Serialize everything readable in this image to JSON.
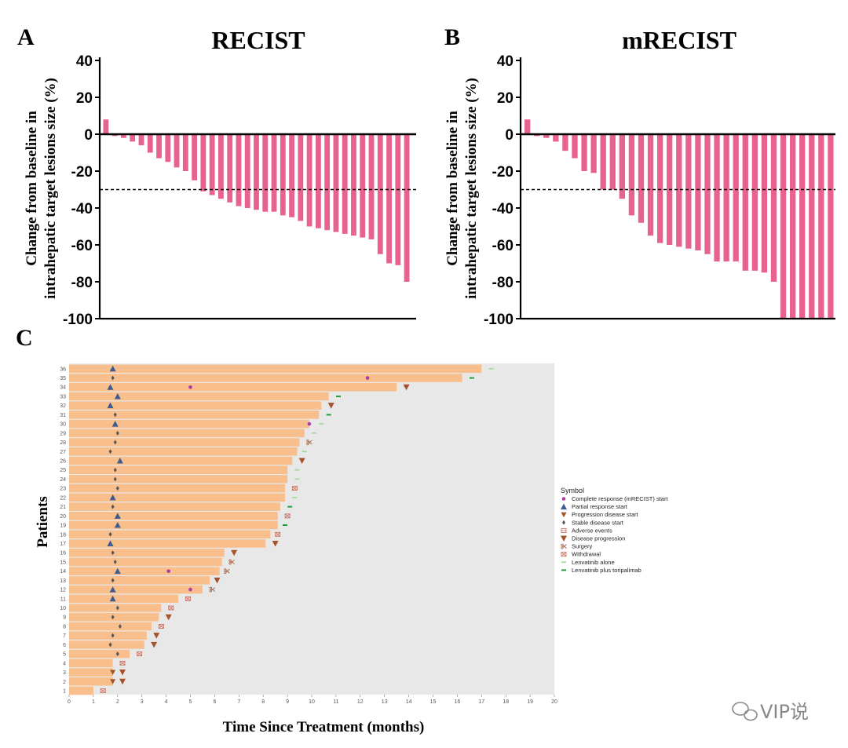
{
  "panels": {
    "a_letter": "A",
    "b_letter": "B",
    "c_letter": "C"
  },
  "watermark": "VIP说",
  "chart_data": [
    {
      "type": "bar",
      "title": "RECIST",
      "ylabel_line1": "Change from baseline in",
      "ylabel_line2": "intrahepatic target lesions size (%)",
      "ylim": [
        -100,
        40
      ],
      "yticks": [
        "40",
        "20",
        "0",
        "-20",
        "-40",
        "-60",
        "-80",
        "-100"
      ],
      "threshold": -30,
      "bar_color": "#e8628e",
      "values": [
        8,
        -1,
        -2,
        -4,
        -6,
        -10,
        -13,
        -15,
        -18,
        -20,
        -25,
        -31,
        -33,
        -35,
        -37,
        -39,
        -40,
        -41,
        -42,
        -42,
        -44,
        -45,
        -47,
        -50,
        -51,
        -52,
        -53,
        -54,
        -55,
        -56,
        -57,
        -65,
        -70,
        -71,
        -80
      ]
    },
    {
      "type": "bar",
      "title": "mRECIST",
      "ylabel_line1": "Change from baseline in",
      "ylabel_line2": "intrahepatic target lesions size (%)",
      "ylim": [
        -100,
        40
      ],
      "yticks": [
        "40",
        "20",
        "0",
        "-20",
        "-40",
        "-60",
        "-80",
        "-100"
      ],
      "threshold": -30,
      "bar_color": "#e8628e",
      "values": [
        8,
        -1,
        -2,
        -4,
        -9,
        -13,
        -20,
        -21,
        -30,
        -30,
        -35,
        -44,
        -48,
        -55,
        -59,
        -60,
        -61,
        -62,
        -63,
        -65,
        -69,
        -69,
        -69,
        -74,
        -74,
        -75,
        -80,
        -100,
        -100,
        -100,
        -100,
        -100,
        -100
      ]
    },
    {
      "type": "swimmer",
      "xlabel": "Time Since Treatment (months)",
      "ylabel": "Patients",
      "xlim": [
        0,
        20
      ],
      "xticks": [
        "0",
        "1",
        "2",
        "3",
        "4",
        "5",
        "6",
        "7",
        "8",
        "9",
        "10",
        "11",
        "12",
        "13",
        "14",
        "15",
        "16",
        "17",
        "18",
        "19",
        "20"
      ],
      "bar_color": "#f8be8c",
      "background_color": "#e8e8e8",
      "patients": [
        {
          "id": "1",
          "duration": 1.0,
          "events": [
            {
              "s": "withdrawal",
              "t": 1.4
            }
          ]
        },
        {
          "id": "2",
          "duration": 1.8,
          "events": [
            {
              "s": "pd_start",
              "t": 1.8
            },
            {
              "s": "progression",
              "t": 2.2
            }
          ]
        },
        {
          "id": "3",
          "duration": 1.8,
          "events": [
            {
              "s": "pd_start",
              "t": 1.8
            },
            {
              "s": "progression",
              "t": 2.2
            }
          ]
        },
        {
          "id": "4",
          "duration": 1.8,
          "events": [
            {
              "s": "withdrawal",
              "t": 2.2
            }
          ]
        },
        {
          "id": "5",
          "duration": 2.5,
          "events": [
            {
              "s": "sd",
              "t": 2.0
            },
            {
              "s": "withdrawal",
              "t": 2.9
            }
          ]
        },
        {
          "id": "6",
          "duration": 3.1,
          "events": [
            {
              "s": "sd",
              "t": 1.7
            },
            {
              "s": "progression",
              "t": 3.5
            }
          ]
        },
        {
          "id": "7",
          "duration": 3.2,
          "events": [
            {
              "s": "sd",
              "t": 1.8
            },
            {
              "s": "progression",
              "t": 3.6
            }
          ]
        },
        {
          "id": "8",
          "duration": 3.4,
          "events": [
            {
              "s": "sd",
              "t": 2.1
            },
            {
              "s": "withdrawal",
              "t": 3.8
            }
          ]
        },
        {
          "id": "9",
          "duration": 3.7,
          "events": [
            {
              "s": "sd",
              "t": 1.8
            },
            {
              "s": "progression",
              "t": 4.1
            }
          ]
        },
        {
          "id": "10",
          "duration": 3.8,
          "events": [
            {
              "s": "sd",
              "t": 2.0
            },
            {
              "s": "withdrawal",
              "t": 4.2
            }
          ]
        },
        {
          "id": "11",
          "duration": 4.5,
          "events": [
            {
              "s": "pr",
              "t": 1.8
            },
            {
              "s": "withdrawal",
              "t": 4.9
            }
          ]
        },
        {
          "id": "12",
          "duration": 5.5,
          "events": [
            {
              "s": "pr",
              "t": 1.8
            },
            {
              "s": "cr",
              "t": 5.0
            },
            {
              "s": "surgery",
              "t": 5.9
            }
          ]
        },
        {
          "id": "13",
          "duration": 5.8,
          "events": [
            {
              "s": "sd",
              "t": 1.8
            },
            {
              "s": "progression",
              "t": 6.1
            }
          ]
        },
        {
          "id": "14",
          "duration": 6.2,
          "events": [
            {
              "s": "pr",
              "t": 2.0
            },
            {
              "s": "cr",
              "t": 4.1
            },
            {
              "s": "surgery",
              "t": 6.5
            }
          ]
        },
        {
          "id": "15",
          "duration": 6.3,
          "events": [
            {
              "s": "sd",
              "t": 1.9
            },
            {
              "s": "surgery",
              "t": 6.7
            }
          ]
        },
        {
          "id": "16",
          "duration": 6.4,
          "events": [
            {
              "s": "sd",
              "t": 1.8
            },
            {
              "s": "progression",
              "t": 6.8
            }
          ]
        },
        {
          "id": "17",
          "duration": 8.1,
          "events": [
            {
              "s": "pr",
              "t": 1.7
            },
            {
              "s": "progression",
              "t": 8.5
            }
          ]
        },
        {
          "id": "18",
          "duration": 8.3,
          "events": [
            {
              "s": "sd",
              "t": 1.7
            },
            {
              "s": "withdrawal",
              "t": 8.6
            }
          ]
        },
        {
          "id": "19",
          "duration": 8.6,
          "events": [
            {
              "s": "pr",
              "t": 2.0
            },
            {
              "s": "lenv_tori",
              "t": 8.9
            }
          ]
        },
        {
          "id": "20",
          "duration": 8.6,
          "events": [
            {
              "s": "pr",
              "t": 2.0
            },
            {
              "s": "withdrawal",
              "t": 9.0
            }
          ]
        },
        {
          "id": "21",
          "duration": 8.7,
          "events": [
            {
              "s": "sd",
              "t": 1.8
            },
            {
              "s": "lenv_tori",
              "t": 9.1
            }
          ]
        },
        {
          "id": "22",
          "duration": 8.9,
          "events": [
            {
              "s": "pr",
              "t": 1.8
            },
            {
              "s": "lenv_alone",
              "t": 9.3
            }
          ]
        },
        {
          "id": "23",
          "duration": 8.9,
          "events": [
            {
              "s": "sd",
              "t": 2.0
            },
            {
              "s": "withdrawal",
              "t": 9.3
            }
          ]
        },
        {
          "id": "24",
          "duration": 9.0,
          "events": [
            {
              "s": "sd",
              "t": 1.9
            },
            {
              "s": "lenv_alone",
              "t": 9.4
            }
          ]
        },
        {
          "id": "25",
          "duration": 9.0,
          "events": [
            {
              "s": "sd",
              "t": 1.9
            },
            {
              "s": "lenv_alone",
              "t": 9.4
            }
          ]
        },
        {
          "id": "26",
          "duration": 9.2,
          "events": [
            {
              "s": "pr",
              "t": 2.1
            },
            {
              "s": "progression",
              "t": 9.6
            }
          ]
        },
        {
          "id": "27",
          "duration": 9.4,
          "events": [
            {
              "s": "sd",
              "t": 1.7
            },
            {
              "s": "lenv_alone",
              "t": 9.7
            }
          ]
        },
        {
          "id": "28",
          "duration": 9.5,
          "events": [
            {
              "s": "sd",
              "t": 1.9
            },
            {
              "s": "surgery",
              "t": 9.9
            }
          ]
        },
        {
          "id": "29",
          "duration": 9.7,
          "events": [
            {
              "s": "sd",
              "t": 2.0
            },
            {
              "s": "lenv_alone",
              "t": 10.1
            }
          ]
        },
        {
          "id": "30",
          "duration": 9.9,
          "events": [
            {
              "s": "pr",
              "t": 1.9
            },
            {
              "s": "cr",
              "t": 9.9
            },
            {
              "s": "lenv_alone",
              "t": 10.4
            }
          ]
        },
        {
          "id": "31",
          "duration": 10.3,
          "events": [
            {
              "s": "sd",
              "t": 1.9
            },
            {
              "s": "lenv_tori",
              "t": 10.7
            }
          ]
        },
        {
          "id": "32",
          "duration": 10.4,
          "events": [
            {
              "s": "pr",
              "t": 1.7
            },
            {
              "s": "progression",
              "t": 10.8
            }
          ]
        },
        {
          "id": "33",
          "duration": 10.7,
          "events": [
            {
              "s": "pr",
              "t": 2.0
            },
            {
              "s": "lenv_tori",
              "t": 11.1
            }
          ]
        },
        {
          "id": "34",
          "duration": 13.5,
          "events": [
            {
              "s": "pr",
              "t": 1.7
            },
            {
              "s": "cr",
              "t": 5.0
            },
            {
              "s": "progression",
              "t": 13.9
            }
          ]
        },
        {
          "id": "35",
          "duration": 16.2,
          "events": [
            {
              "s": "sd",
              "t": 1.8
            },
            {
              "s": "cr",
              "t": 12.3
            },
            {
              "s": "lenv_tori",
              "t": 16.6
            }
          ]
        },
        {
          "id": "36",
          "duration": 17.0,
          "events": [
            {
              "s": "pr",
              "t": 1.8
            },
            {
              "s": "lenv_alone",
              "t": 17.4
            }
          ]
        }
      ],
      "legend": {
        "title": "Symbol",
        "items": [
          {
            "key": "cr",
            "label": "Complete response (mRECIST) start",
            "color": "#b03aa3"
          },
          {
            "key": "pr",
            "label": "Partial response start",
            "color": "#3d5c8f"
          },
          {
            "key": "pd_start",
            "label": "Progression disease start",
            "color": "#a5532a"
          },
          {
            "key": "sd",
            "label": "Stable disease start",
            "color": "#555555"
          },
          {
            "key": "adverse",
            "label": "Adverse events",
            "color": "#c87060"
          },
          {
            "key": "progression",
            "label": "Disease progression",
            "color": "#a5532a"
          },
          {
            "key": "surgery",
            "label": "Surgery",
            "color": "#a55a3a"
          },
          {
            "key": "withdrawal",
            "label": "Withdrawal",
            "color": "#c87060"
          },
          {
            "key": "lenv_alone",
            "label": "Lenvatinib alone",
            "color": "#a6d9a0"
          },
          {
            "key": "lenv_tori",
            "label": "Lenvatinib plus toripalimab",
            "color": "#1f9e3a"
          }
        ]
      }
    }
  ]
}
